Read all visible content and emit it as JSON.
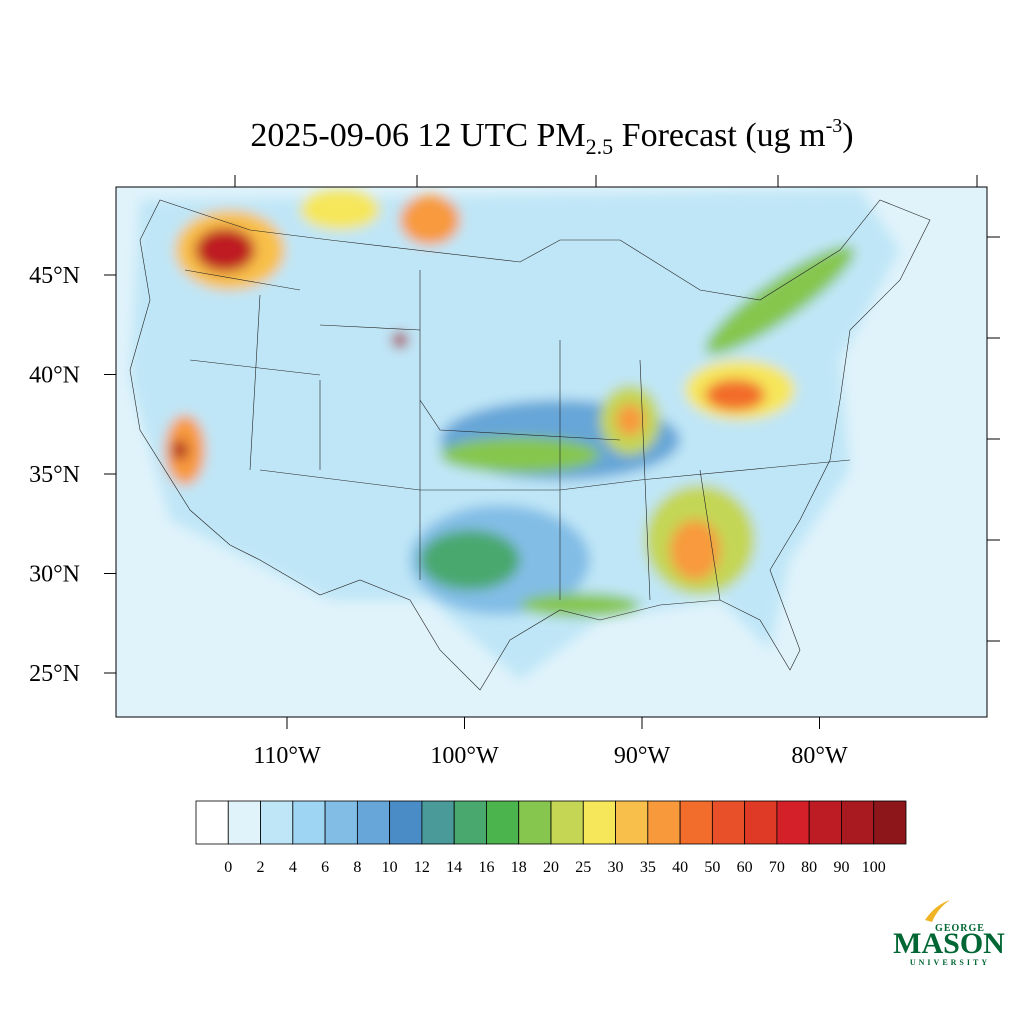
{
  "map": {
    "title": {
      "main": "2025-09-06 12 UTC PM",
      "sub": "2.5",
      "mid": " Forecast (ug m",
      "sup": "-3",
      "end": ")"
    },
    "lon_ticks": [
      {
        "value": -110,
        "label": "110°W"
      },
      {
        "value": -100,
        "label": "100°W"
      },
      {
        "value": -90,
        "label": "90°W"
      },
      {
        "value": -80,
        "label": "80°W"
      }
    ],
    "lat_ticks": [
      {
        "value": 45,
        "label": "45°N"
      },
      {
        "value": 40,
        "label": "40°N"
      },
      {
        "value": 35,
        "label": "35°N"
      },
      {
        "value": 30,
        "label": "30°N"
      },
      {
        "value": 25,
        "label": "25°N"
      }
    ]
  },
  "colorbar": {
    "levels": [
      0,
      2,
      4,
      6,
      8,
      10,
      12,
      14,
      16,
      18,
      20,
      25,
      30,
      35,
      40,
      50,
      60,
      70,
      80,
      90,
      100
    ],
    "colors": [
      "#ffffff",
      "#e0f3fb",
      "#bfe6f7",
      "#9dd5f2",
      "#82bde6",
      "#66a6d8",
      "#4a8cc6",
      "#4a9a9a",
      "#48a86e",
      "#4cb44c",
      "#86c64e",
      "#c4d654",
      "#f6e65a",
      "#f8c04a",
      "#f89a3c",
      "#f26c2c",
      "#e8502a",
      "#de3a26",
      "#d42028",
      "#be1c24",
      "#a81a20",
      "#8c161a"
    ]
  },
  "logo": {
    "top": "GEORGE",
    "main": "MASON",
    "bottom": "UNIVERSITY"
  }
}
